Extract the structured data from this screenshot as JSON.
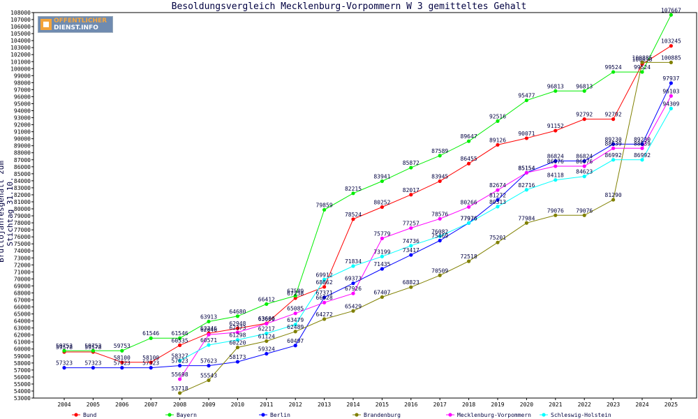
{
  "chart_data": {
    "type": "line",
    "title": "Besoldungsvergleich Mecklenburg-Vorpommern W 3 gemitteltes Gehalt",
    "xlabel": "",
    "ylabel": "Bruttojahresgehalt zum Stichtag 31.10.",
    "ylim": [
      53000,
      108000
    ],
    "ytick_step": 1000,
    "grid": false,
    "legend_position": "bottom",
    "categories": [
      "2004",
      "2005",
      "2006",
      "2007",
      "2008",
      "2009",
      "2010",
      "2011",
      "2012",
      "2013",
      "2014",
      "2015",
      "2016",
      "2017",
      "2018",
      "2019",
      "2020",
      "2021",
      "2022",
      "2023",
      "2024",
      "2025"
    ],
    "series": [
      {
        "name": "Bund",
        "color": "#ff0000",
        "values": [
          59578,
          59578,
          58100,
          58100,
          60535,
          62246,
          62948,
          63666,
          67258,
          68862,
          78524,
          80252,
          82017,
          83945,
          86455,
          89126,
          90071,
          91152,
          92792,
          92792,
          100638,
          103245
        ]
      },
      {
        "name": "Bayern",
        "color": "#00ee00",
        "values": [
          59753,
          59753,
          59753,
          61546,
          61546,
          63913,
          64680,
          66412,
          67589,
          79859,
          82215,
          83941,
          85872,
          87589,
          89647,
          92516,
          95477,
          96813,
          96813,
          99524,
          99524,
          107667
        ]
      },
      {
        "name": "Berlin",
        "color": "#0000ff",
        "values": [
          57323,
          57323,
          57323,
          57323,
          57623,
          57623,
          58173,
          59324,
          60497,
          67371,
          69373,
          71435,
          73417,
          75469,
          77976,
          81272,
          85154,
          86824,
          86824,
          89230,
          89230,
          97937
        ]
      },
      {
        "name": "Brandenburg",
        "color": "#808000",
        "values": [
          null,
          null,
          null,
          null,
          53718,
          55543,
          60220,
          61124,
          62489,
          64272,
          65429,
          67407,
          68823,
          70509,
          72518,
          75201,
          77984,
          79076,
          79076,
          81290,
          100885,
          100885
        ]
      },
      {
        "name": "Mecklenburg-Vorpommern",
        "color": "#ff00ff",
        "values": [
          null,
          null,
          null,
          null,
          55698,
          62046,
          62373,
          63609,
          65085,
          66628,
          67926,
          75779,
          77257,
          78576,
          80266,
          82674,
          85154,
          86076,
          86076,
          88639,
          88639,
          96103
        ]
      },
      {
        "name": "Schleswig-Holstein",
        "color": "#00ffff",
        "values": [
          null,
          null,
          null,
          null,
          58327,
          60571,
          61298,
          62217,
          63479,
          69912,
          71834,
          73199,
          74736,
          76082,
          77976,
          80313,
          82716,
          84118,
          84623,
          86992,
          86992,
          94309
        ]
      }
    ]
  },
  "logo": {
    "line1": "OFFENTLICHER",
    "line2": "DIENST.INFO"
  }
}
